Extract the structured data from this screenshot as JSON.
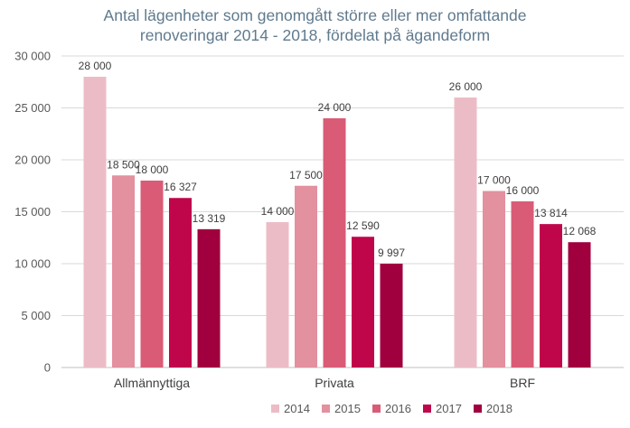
{
  "chart_data": {
    "type": "bar",
    "title_line1": "Antal lägenheter som genomgått större eller mer omfattande",
    "title_line2": "renoveringar 2014 - 2018, fördelat på ägandeform",
    "categories": [
      "Allmännyttiga",
      "Privata",
      "BRF"
    ],
    "series": [
      {
        "name": "2014",
        "color": "#ecbcc6",
        "values": [
          28000,
          14000,
          26000
        ]
      },
      {
        "name": "2015",
        "color": "#e3909f",
        "values": [
          18500,
          17500,
          17000
        ]
      },
      {
        "name": "2016",
        "color": "#da5b76",
        "values": [
          18000,
          24000,
          16000
        ]
      },
      {
        "name": "2017",
        "color": "#c0064b",
        "values": [
          16327,
          12590,
          13814
        ]
      },
      {
        "name": "2018",
        "color": "#a0003e",
        "values": [
          13319,
          9997,
          12068
        ]
      }
    ],
    "data_labels": [
      [
        "28 000",
        "14 000",
        "26 000"
      ],
      [
        "18 500",
        "17 500",
        "17 000"
      ],
      [
        "18 000",
        "24 000",
        "16 000"
      ],
      [
        "16 327",
        "12 590",
        "13 814"
      ],
      [
        "13 319",
        "9 997",
        "12 068"
      ]
    ],
    "y_ticks": [
      0,
      5000,
      10000,
      15000,
      20000,
      25000,
      30000
    ],
    "y_tick_labels": [
      "0",
      "5 000",
      "10 000",
      "15 000",
      "20 000",
      "25 000",
      "30 000"
    ],
    "ylim": [
      0,
      30000
    ],
    "grid": true,
    "legend_position": "bottom"
  }
}
